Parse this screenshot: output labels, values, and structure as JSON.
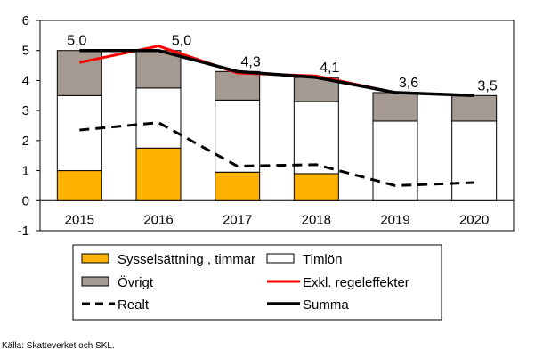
{
  "chart_data": {
    "type": "bar",
    "categories": [
      "2015",
      "2016",
      "2017",
      "2018",
      "2019",
      "2020"
    ],
    "ylim": [
      -1,
      6
    ],
    "yticks": [
      "-1",
      "0",
      "1",
      "2",
      "3",
      "4",
      "5",
      "6"
    ],
    "stacked_series": [
      {
        "name": "Sysselsättning , timmar",
        "color": "#ffb300",
        "values": [
          1.0,
          1.75,
          0.95,
          0.9,
          0.0,
          0.0
        ]
      },
      {
        "name": "Timlön",
        "color": "#ffffff",
        "values": [
          2.5,
          2.0,
          2.4,
          2.4,
          2.65,
          2.65
        ]
      },
      {
        "name": "Övrigt",
        "color": "#a59a91",
        "values": [
          1.5,
          1.25,
          0.95,
          0.8,
          0.95,
          0.85
        ]
      }
    ],
    "line_series": [
      {
        "name": "Exkl. regeleffekter",
        "color": "#ff0000",
        "style": "solid",
        "values": [
          4.6,
          5.15,
          4.25,
          4.15,
          3.6,
          3.5
        ]
      },
      {
        "name": "Realt",
        "color": "#000000",
        "style": "dashed",
        "values": [
          2.35,
          2.6,
          1.15,
          1.2,
          0.5,
          0.6
        ]
      },
      {
        "name": "Summa",
        "color": "#000000",
        "style": "solid",
        "values": [
          5.0,
          5.0,
          4.3,
          4.1,
          3.6,
          3.5
        ]
      }
    ],
    "data_labels": [
      "5,0",
      "5,0",
      "4,3",
      "4,1",
      "3,6",
      "3,5"
    ],
    "legend_order": [
      "Sysselsättning , timmar",
      "Timlön",
      "Övrigt",
      "Exkl. regeleffekter",
      "Realt",
      "Summa"
    ]
  },
  "source_note": "Källa: Skatteverket och SKL."
}
